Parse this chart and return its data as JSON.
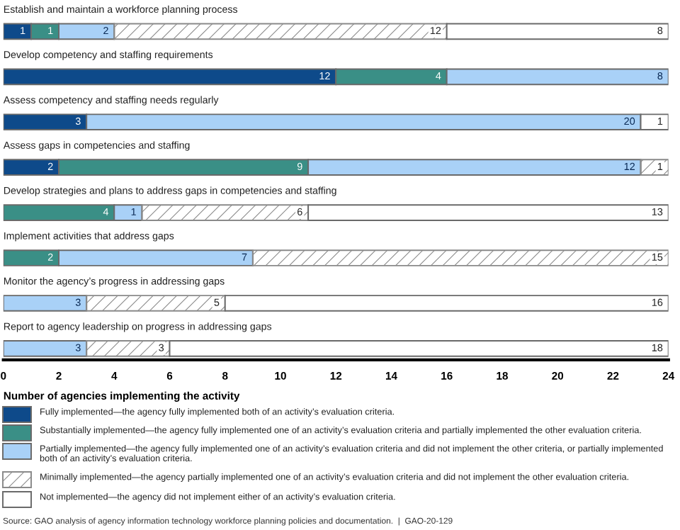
{
  "chart_data": {
    "type": "bar",
    "orientation": "horizontal",
    "stacked": true,
    "categories": [
      "Establish and maintain a workforce planning process",
      "Develop competency and staffing requirements",
      "Assess competency and staffing needs regularly",
      "Assess gaps in competencies and staffing",
      "Develop strategies and plans to address gaps in competencies and staffing",
      "Implement activities that address gaps",
      "Monitor the agency’s progress in addressing gaps",
      "Report to agency leadership on progress in addressing gaps"
    ],
    "series": [
      {
        "name": "Fully implemented—the agency fully implemented both of an activity’s evaluation criteria.",
        "color": "#0e4a8a",
        "values": [
          1,
          12,
          3,
          2,
          null,
          null,
          null,
          null
        ]
      },
      {
        "name": "Substantially implemented—the agency fully implemented one of an activity’s evaluation criteria and partially implemented the other evaluation criteria.",
        "color": "#3a8f86",
        "values": [
          1,
          4,
          null,
          9,
          4,
          2,
          null,
          null
        ]
      },
      {
        "name": "Partially implemented—the agency fully implemented one of an activity’s evaluation criteria and did not implement the other criteria, or partially implemented both of an activity’s evaluation criteria.",
        "color": "#a9d1f7",
        "values": [
          2,
          8,
          20,
          12,
          1,
          7,
          3,
          3
        ]
      },
      {
        "name": "Minimally implemented—the agency partially implemented one of an activity’s evaluation criteria and did not implement the other evaluation criteria.",
        "color": "#8a8a8a",
        "values": [
          12,
          null,
          null,
          1,
          6,
          15,
          5,
          3
        ]
      },
      {
        "name": "Not implemented—the agency did not implement either of an activity’s evaluation criteria.",
        "color": "#ffffff",
        "values": [
          8,
          null,
          1,
          null,
          13,
          null,
          16,
          18
        ]
      }
    ],
    "xlabel": "Number of agencies implementing the activity",
    "xlim": [
      0,
      24
    ],
    "xticks": [
      0,
      2,
      4,
      6,
      8,
      10,
      12,
      14,
      16,
      18,
      20,
      22,
      24
    ],
    "data_labels": true,
    "grid": false,
    "legend": "bottom",
    "tick_labels": "x",
    "annotations": [
      "Source: GAO analysis of agency information technology workforce planning policies and documentation.  |  GAO-20-129"
    ]
  }
}
